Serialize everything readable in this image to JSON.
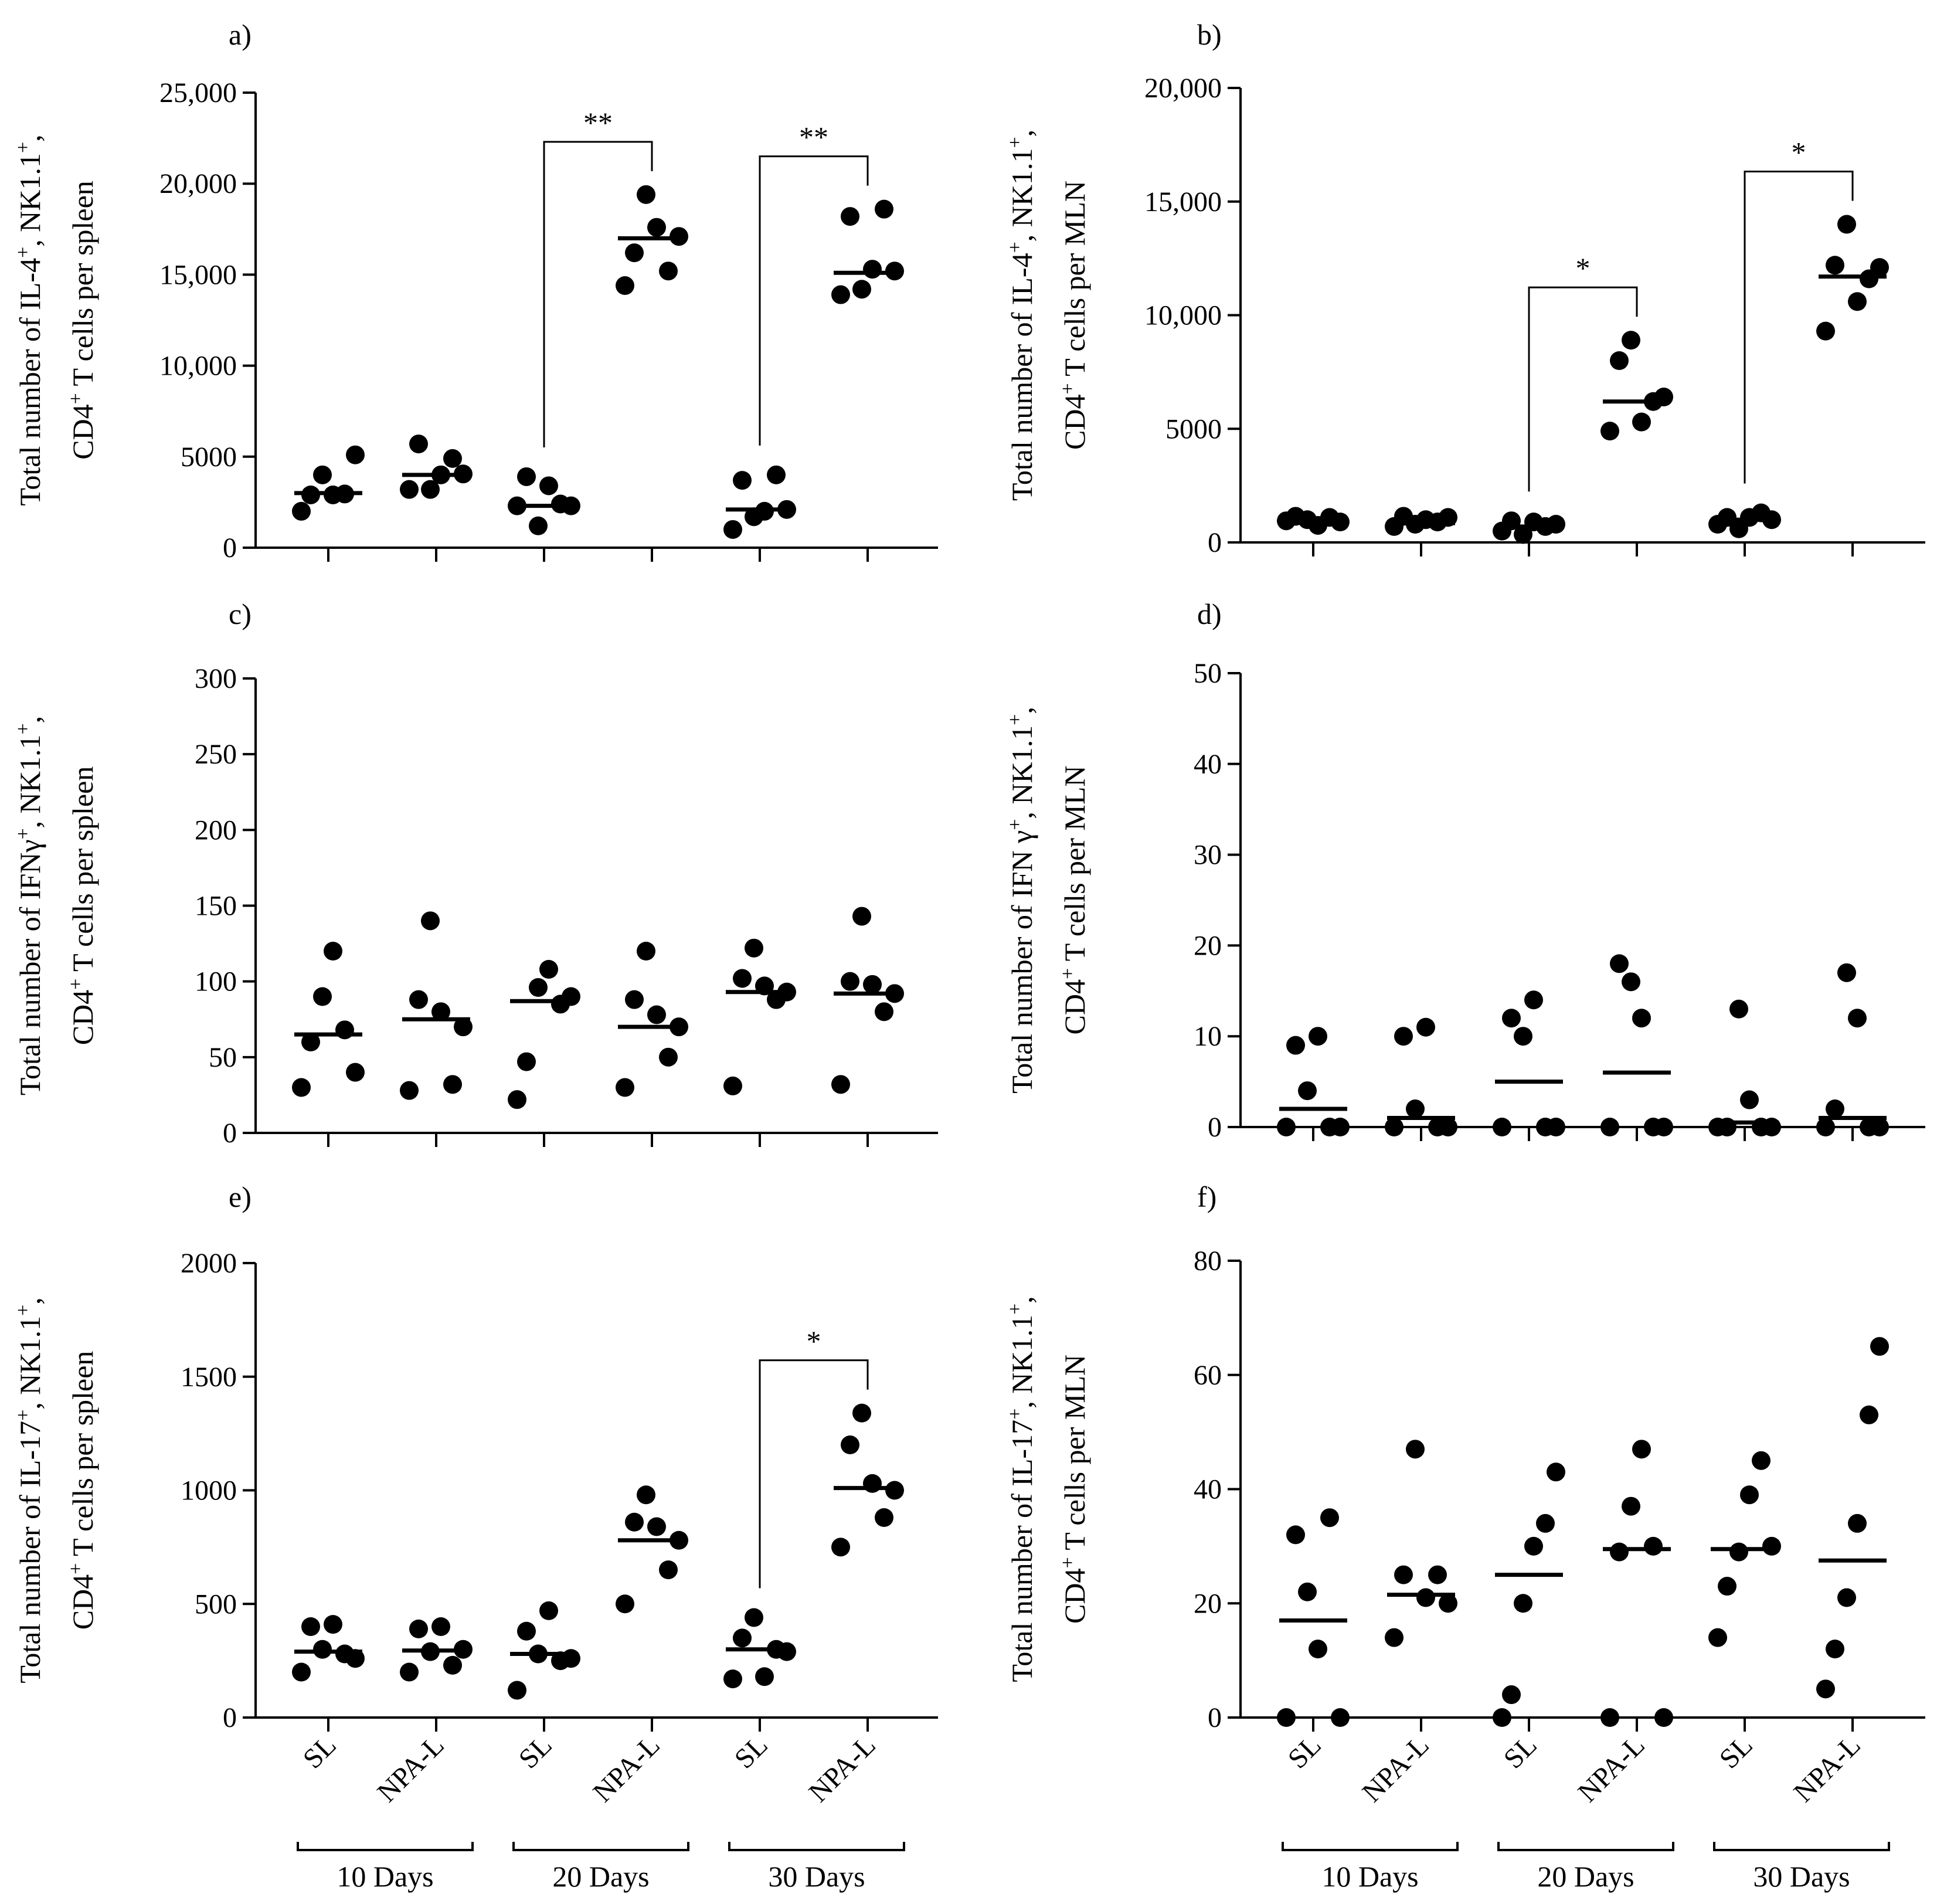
{
  "chart_data": [
    {
      "id": "a",
      "panel_label": "a)",
      "type": "scatter",
      "ylabel_lines": [
        {
          "parts": [
            {
              "t": "Total number of IL-4"
            },
            {
              "t": "+",
              "sup": true
            },
            {
              "t": ", NK1.1"
            },
            {
              "t": "+",
              "sup": true
            },
            {
              "t": ","
            }
          ]
        },
        {
          "parts": [
            {
              "t": "CD4"
            },
            {
              "t": "+",
              "sup": true
            },
            {
              "t": " T cells per spleen"
            }
          ]
        }
      ],
      "ylim": [
        0,
        25000
      ],
      "ticks": [
        0,
        5000,
        10000,
        15000,
        20000,
        25000
      ],
      "tick_labels": [
        "0",
        "5000",
        "10,000",
        "15,000",
        "20,000",
        "25,000"
      ],
      "categories": [
        "SL",
        "NPA-L",
        "SL",
        "NPA-L",
        "SL",
        "NPA-L"
      ],
      "groups": [
        "10 Days",
        "20 Days",
        "30 Days"
      ],
      "series": [
        {
          "name": "SL 10 Days",
          "values": [
            2000,
            2900,
            4000,
            2900,
            2950,
            5100
          ],
          "mean": 3000
        },
        {
          "name": "NPA-L 10 Days",
          "values": [
            3200,
            5700,
            3200,
            4000,
            4900,
            4050
          ],
          "mean": 4000
        },
        {
          "name": "SL 20 Days",
          "values": [
            2300,
            3900,
            1200,
            3400,
            2400,
            2300
          ],
          "mean": 2300
        },
        {
          "name": "NPA-L 20 Days",
          "values": [
            14400,
            16200,
            19400,
            17600,
            15200,
            17100
          ],
          "mean": 17000
        },
        {
          "name": "SL 30 Days",
          "values": [
            1000,
            3700,
            1700,
            2000,
            4000,
            2100
          ],
          "mean": 2100
        },
        {
          "name": "NPA-L 30 Days",
          "values": [
            13900,
            18200,
            14200,
            15300,
            18600,
            15200
          ],
          "mean": 15100
        }
      ],
      "brackets": [
        {
          "from": 2,
          "to": 3,
          "label": "**"
        },
        {
          "from": 4,
          "to": 5,
          "label": "**"
        }
      ]
    },
    {
      "id": "b",
      "panel_label": "b)",
      "type": "scatter",
      "ylabel_lines": [
        {
          "parts": [
            {
              "t": "Total number of IL-4"
            },
            {
              "t": "+",
              "sup": true
            },
            {
              "t": ", NK1.1"
            },
            {
              "t": "+",
              "sup": true
            },
            {
              "t": ","
            }
          ]
        },
        {
          "parts": [
            {
              "t": "CD4"
            },
            {
              "t": "+",
              "sup": true
            },
            {
              "t": " T cells per MLN"
            }
          ]
        }
      ],
      "ylim": [
        0,
        20000
      ],
      "ticks": [
        0,
        5000,
        10000,
        15000,
        20000
      ],
      "tick_labels": [
        "0",
        "5000",
        "10,000",
        "15,000",
        "20,000"
      ],
      "categories": [
        "SL",
        "NPA-L",
        "SL",
        "NPA-L",
        "SL",
        "NPA-L"
      ],
      "groups": [
        "10 Days",
        "20 Days",
        "30 Days"
      ],
      "series": [
        {
          "name": "SL 10 Days",
          "values": [
            950,
            1150,
            1000,
            750,
            1100,
            900
          ],
          "mean": 950
        },
        {
          "name": "NPA-L 10 Days",
          "values": [
            700,
            1150,
            800,
            1000,
            900,
            1100
          ],
          "mean": 850
        },
        {
          "name": "SL 20 Days",
          "values": [
            500,
            950,
            350,
            900,
            700,
            800
          ],
          "mean": 700
        },
        {
          "name": "NPA-L 20 Days",
          "values": [
            4900,
            8000,
            8900,
            5300,
            6200,
            6400
          ],
          "mean": 6200
        },
        {
          "name": "SL 30 Days",
          "values": [
            800,
            1100,
            600,
            1100,
            1300,
            1000
          ],
          "mean": 1000
        },
        {
          "name": "NPA-L 30 Days",
          "values": [
            9300,
            12200,
            14000,
            10600,
            11600,
            12100
          ],
          "mean": 11700
        }
      ],
      "brackets": [
        {
          "from": 2,
          "to": 3,
          "label": "*"
        },
        {
          "from": 4,
          "to": 5,
          "label": "*"
        }
      ]
    },
    {
      "id": "c",
      "panel_label": "c)",
      "type": "scatter",
      "ylabel_lines": [
        {
          "parts": [
            {
              "t": "Total number of IFNγ"
            },
            {
              "t": "+",
              "sup": true
            },
            {
              "t": ", NK1.1"
            },
            {
              "t": "+",
              "sup": true
            },
            {
              "t": ","
            }
          ]
        },
        {
          "parts": [
            {
              "t": "CD4"
            },
            {
              "t": "+",
              "sup": true
            },
            {
              "t": " T cells per spleen"
            }
          ]
        }
      ],
      "ylim": [
        0,
        300
      ],
      "ticks": [
        0,
        50,
        100,
        150,
        200,
        250,
        300
      ],
      "tick_labels": [
        "0",
        "50",
        "100",
        "150",
        "200",
        "250",
        "300"
      ],
      "categories": [
        "SL",
        "NPA-L",
        "SL",
        "NPA-L",
        "SL",
        "NPA-L"
      ],
      "groups": [
        "10 Days",
        "20 Days",
        "30 Days"
      ],
      "series": [
        {
          "name": "SL 10 Days",
          "values": [
            30,
            60,
            90,
            120,
            68,
            40
          ],
          "mean": 65
        },
        {
          "name": "NPA-L 10 Days",
          "values": [
            28,
            88,
            140,
            80,
            32,
            70
          ],
          "mean": 75
        },
        {
          "name": "SL 20 Days",
          "values": [
            22,
            47,
            96,
            108,
            85,
            90
          ],
          "mean": 87
        },
        {
          "name": "NPA-L 20 Days",
          "values": [
            30,
            88,
            120,
            78,
            50,
            70
          ],
          "mean": 70
        },
        {
          "name": "SL 30 Days",
          "values": [
            31,
            102,
            122,
            97,
            88,
            93
          ],
          "mean": 93
        },
        {
          "name": "NPA-L 30 Days",
          "values": [
            32,
            100,
            143,
            98,
            80,
            92
          ],
          "mean": 92
        }
      ],
      "brackets": []
    },
    {
      "id": "d",
      "panel_label": "d)",
      "type": "scatter",
      "ylabel_lines": [
        {
          "parts": [
            {
              "t": "Total number of IFN γ"
            },
            {
              "t": "+",
              "sup": true
            },
            {
              "t": ", NK1.1"
            },
            {
              "t": "+",
              "sup": true
            },
            {
              "t": ","
            }
          ]
        },
        {
          "parts": [
            {
              "t": "CD4"
            },
            {
              "t": "+",
              "sup": true
            },
            {
              "t": " T cells per MLN"
            }
          ]
        }
      ],
      "ylim": [
        0,
        50
      ],
      "ticks": [
        0,
        10,
        20,
        30,
        40,
        50
      ],
      "tick_labels": [
        "0",
        "10",
        "20",
        "30",
        "40",
        "50"
      ],
      "categories": [
        "SL",
        "NPA-L",
        "SL",
        "NPA-L",
        "SL",
        "NPA-L"
      ],
      "groups": [
        "10 Days",
        "20 Days",
        "30 Days"
      ],
      "series": [
        {
          "name": "SL 10 Days",
          "values": [
            0,
            9,
            4,
            10,
            0,
            0
          ],
          "mean": 2
        },
        {
          "name": "NPA-L 10 Days",
          "values": [
            0,
            10,
            2,
            11,
            0,
            0
          ],
          "mean": 1
        },
        {
          "name": "SL 20 Days",
          "values": [
            0,
            12,
            10,
            14,
            0,
            0
          ],
          "mean": 5
        },
        {
          "name": "NPA-L 20 Days",
          "values": [
            0,
            18,
            16,
            12,
            0,
            0
          ],
          "mean": 6
        },
        {
          "name": "SL 30 Days",
          "values": [
            0,
            0,
            13,
            3,
            0,
            0
          ],
          "mean": 0.5
        },
        {
          "name": "NPA-L 30 Days",
          "values": [
            0,
            2,
            17,
            12,
            0,
            0
          ],
          "mean": 1
        }
      ],
      "brackets": []
    },
    {
      "id": "e",
      "panel_label": "e)",
      "type": "scatter",
      "ylabel_lines": [
        {
          "parts": [
            {
              "t": "Total number of IL-17"
            },
            {
              "t": "+",
              "sup": true
            },
            {
              "t": ", NK1.1"
            },
            {
              "t": "+",
              "sup": true
            },
            {
              "t": ","
            }
          ]
        },
        {
          "parts": [
            {
              "t": "CD4"
            },
            {
              "t": "+",
              "sup": true
            },
            {
              "t": " T cells per spleen"
            }
          ]
        }
      ],
      "ylim": [
        0,
        2000
      ],
      "ticks": [
        0,
        500,
        1000,
        1500,
        2000
      ],
      "tick_labels": [
        "0",
        "500",
        "1000",
        "1500",
        "2000"
      ],
      "categories": [
        "SL",
        "NPA-L",
        "SL",
        "NPA-L",
        "SL",
        "NPA-L"
      ],
      "groups": [
        "10 Days",
        "20 Days",
        "30 Days"
      ],
      "series": [
        {
          "name": "SL 10 Days",
          "values": [
            200,
            400,
            300,
            410,
            280,
            260
          ],
          "mean": 290
        },
        {
          "name": "NPA-L 10 Days",
          "values": [
            200,
            390,
            290,
            400,
            230,
            300
          ],
          "mean": 295
        },
        {
          "name": "SL 20 Days",
          "values": [
            120,
            380,
            280,
            470,
            250,
            260
          ],
          "mean": 280
        },
        {
          "name": "NPA-L 20 Days",
          "values": [
            500,
            860,
            980,
            840,
            650,
            780
          ],
          "mean": 780
        },
        {
          "name": "SL 30 Days",
          "values": [
            170,
            350,
            440,
            180,
            300,
            290
          ],
          "mean": 300
        },
        {
          "name": "NPA-L 30 Days",
          "values": [
            750,
            1200,
            1340,
            1030,
            880,
            1000
          ],
          "mean": 1010
        }
      ],
      "brackets": [
        {
          "from": 4,
          "to": 5,
          "label": "*"
        }
      ]
    },
    {
      "id": "f",
      "panel_label": "f)",
      "type": "scatter",
      "ylabel_lines": [
        {
          "parts": [
            {
              "t": "Total number of IL-17"
            },
            {
              "t": "+",
              "sup": true
            },
            {
              "t": ", NK1.1"
            },
            {
              "t": "+",
              "sup": true
            },
            {
              "t": ","
            }
          ]
        },
        {
          "parts": [
            {
              "t": "CD4"
            },
            {
              "t": "+",
              "sup": true
            },
            {
              "t": " T cells per MLN"
            }
          ]
        }
      ],
      "ylim": [
        0,
        80
      ],
      "ticks": [
        0,
        20,
        40,
        60,
        80
      ],
      "tick_labels": [
        "0",
        "20",
        "40",
        "60",
        "80"
      ],
      "categories": [
        "SL",
        "NPA-L",
        "SL",
        "NPA-L",
        "SL",
        "NPA-L"
      ],
      "groups": [
        "10 Days",
        "20 Days",
        "30 Days"
      ],
      "series": [
        {
          "name": "SL 10 Days",
          "values": [
            0,
            32,
            22,
            12,
            35,
            0
          ],
          "mean": 17
        },
        {
          "name": "NPA-L 10 Days",
          "values": [
            14,
            25,
            47,
            21,
            25,
            20
          ],
          "mean": 21.5
        },
        {
          "name": "SL 20 Days",
          "values": [
            0,
            4,
            20,
            30,
            34,
            43
          ],
          "mean": 25
        },
        {
          "name": "NPA-L 20 Days",
          "values": [
            0,
            29,
            37,
            47,
            30,
            0
          ],
          "mean": 29.5
        },
        {
          "name": "SL 30 Days",
          "values": [
            14,
            23,
            29,
            39,
            45,
            30
          ],
          "mean": 29.5
        },
        {
          "name": "NPA-L 30 Days",
          "values": [
            5,
            12,
            21,
            34,
            53,
            65
          ],
          "mean": 27.5
        }
      ],
      "brackets": []
    }
  ]
}
